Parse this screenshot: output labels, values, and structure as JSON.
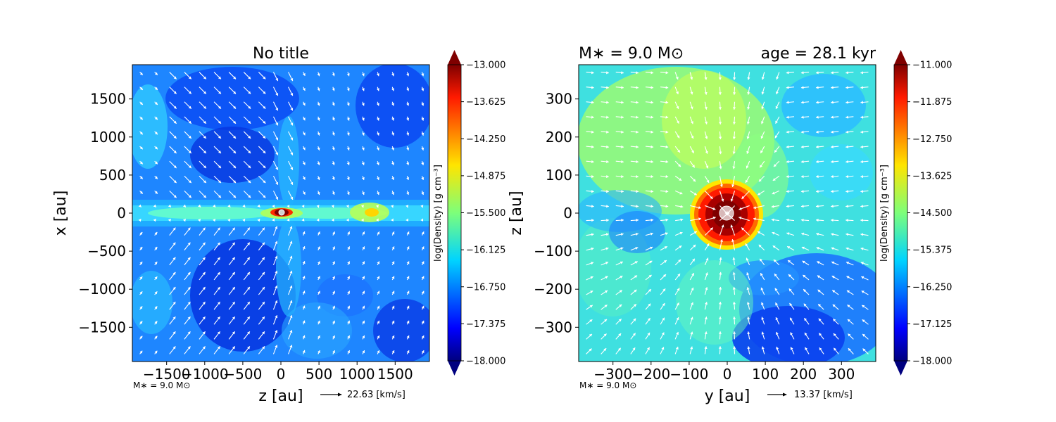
{
  "chart_data": [
    {
      "type": "heatmap",
      "title": "No title",
      "xlabel": "z [au]",
      "ylabel": "x [au]",
      "xlim": [
        -1950,
        1950
      ],
      "ylim": [
        -1950,
        1950
      ],
      "xticks": [
        -1500,
        -1000,
        -500,
        0,
        500,
        1000,
        1500
      ],
      "xtick_labels": [
        "−1500",
        "−1000",
        "−500",
        "0",
        "500",
        "1000",
        "1500"
      ],
      "yticks": [
        -1500,
        -1000,
        -500,
        0,
        500,
        1000,
        1500
      ],
      "ytick_labels": [
        "−1500",
        "−1000",
        "−500",
        "0",
        "500",
        "1000",
        "1500"
      ],
      "colorbar": {
        "label": "log(Density) [g cm$^{-3}$]",
        "label_display": "log(Density) [g cm⁻³]",
        "range": [
          -18.0,
          -13.0
        ],
        "ticks": [
          -13.0,
          -13.625,
          -14.25,
          -14.875,
          -15.5,
          -16.125,
          -16.75,
          -17.375,
          -18.0
        ],
        "tick_labels": [
          "−13.000",
          "−13.625",
          "−14.250",
          "−14.875",
          "−15.500",
          "−16.125",
          "−16.750",
          "−17.375",
          "−18.000"
        ]
      },
      "annotation": "M$_*$ = 9.0 M$_\\odot$",
      "annotation_display": "M∗ = 9.0 M⊙",
      "quiver_key": "22.63 [km/s]",
      "colormap": "jet"
    },
    {
      "type": "heatmap",
      "title_left": "M$_*$ = 9.0 M$_\\odot$",
      "title_left_display": "M∗ = 9.0 M⊙",
      "title_right": "age = 28.1 kyr",
      "xlabel": "y [au]",
      "ylabel": "z [au]",
      "xlim": [
        -390,
        390
      ],
      "ylim": [
        -390,
        390
      ],
      "xticks": [
        -300,
        -200,
        -100,
        0,
        100,
        200,
        300
      ],
      "xtick_labels": [
        "−300",
        "−200",
        "−100",
        "0",
        "100",
        "200",
        "300"
      ],
      "yticks": [
        -300,
        -200,
        -100,
        0,
        100,
        200,
        300
      ],
      "ytick_labels": [
        "−300",
        "−200",
        "−100",
        "0",
        "100",
        "200",
        "300"
      ],
      "colorbar": {
        "label": "log(Density) [g cm$^{-3}$]",
        "label_display": "log(Density) [g cm⁻³]",
        "range": [
          -18.0,
          -11.0
        ],
        "ticks": [
          -11.0,
          -11.875,
          -12.75,
          -13.625,
          -14.5,
          -15.375,
          -16.25,
          -17.125,
          -18.0
        ],
        "tick_labels": [
          "−11.000",
          "−11.875",
          "−12.750",
          "−13.625",
          "−14.500",
          "−15.375",
          "−16.250",
          "−17.125",
          "−18.000"
        ]
      },
      "annotation": "M$_*$ = 9.0 M$_\\odot$",
      "annotation_display": "M∗ = 9.0 M⊙",
      "quiver_key": "13.37 [km/s]",
      "colormap": "jet"
    }
  ]
}
